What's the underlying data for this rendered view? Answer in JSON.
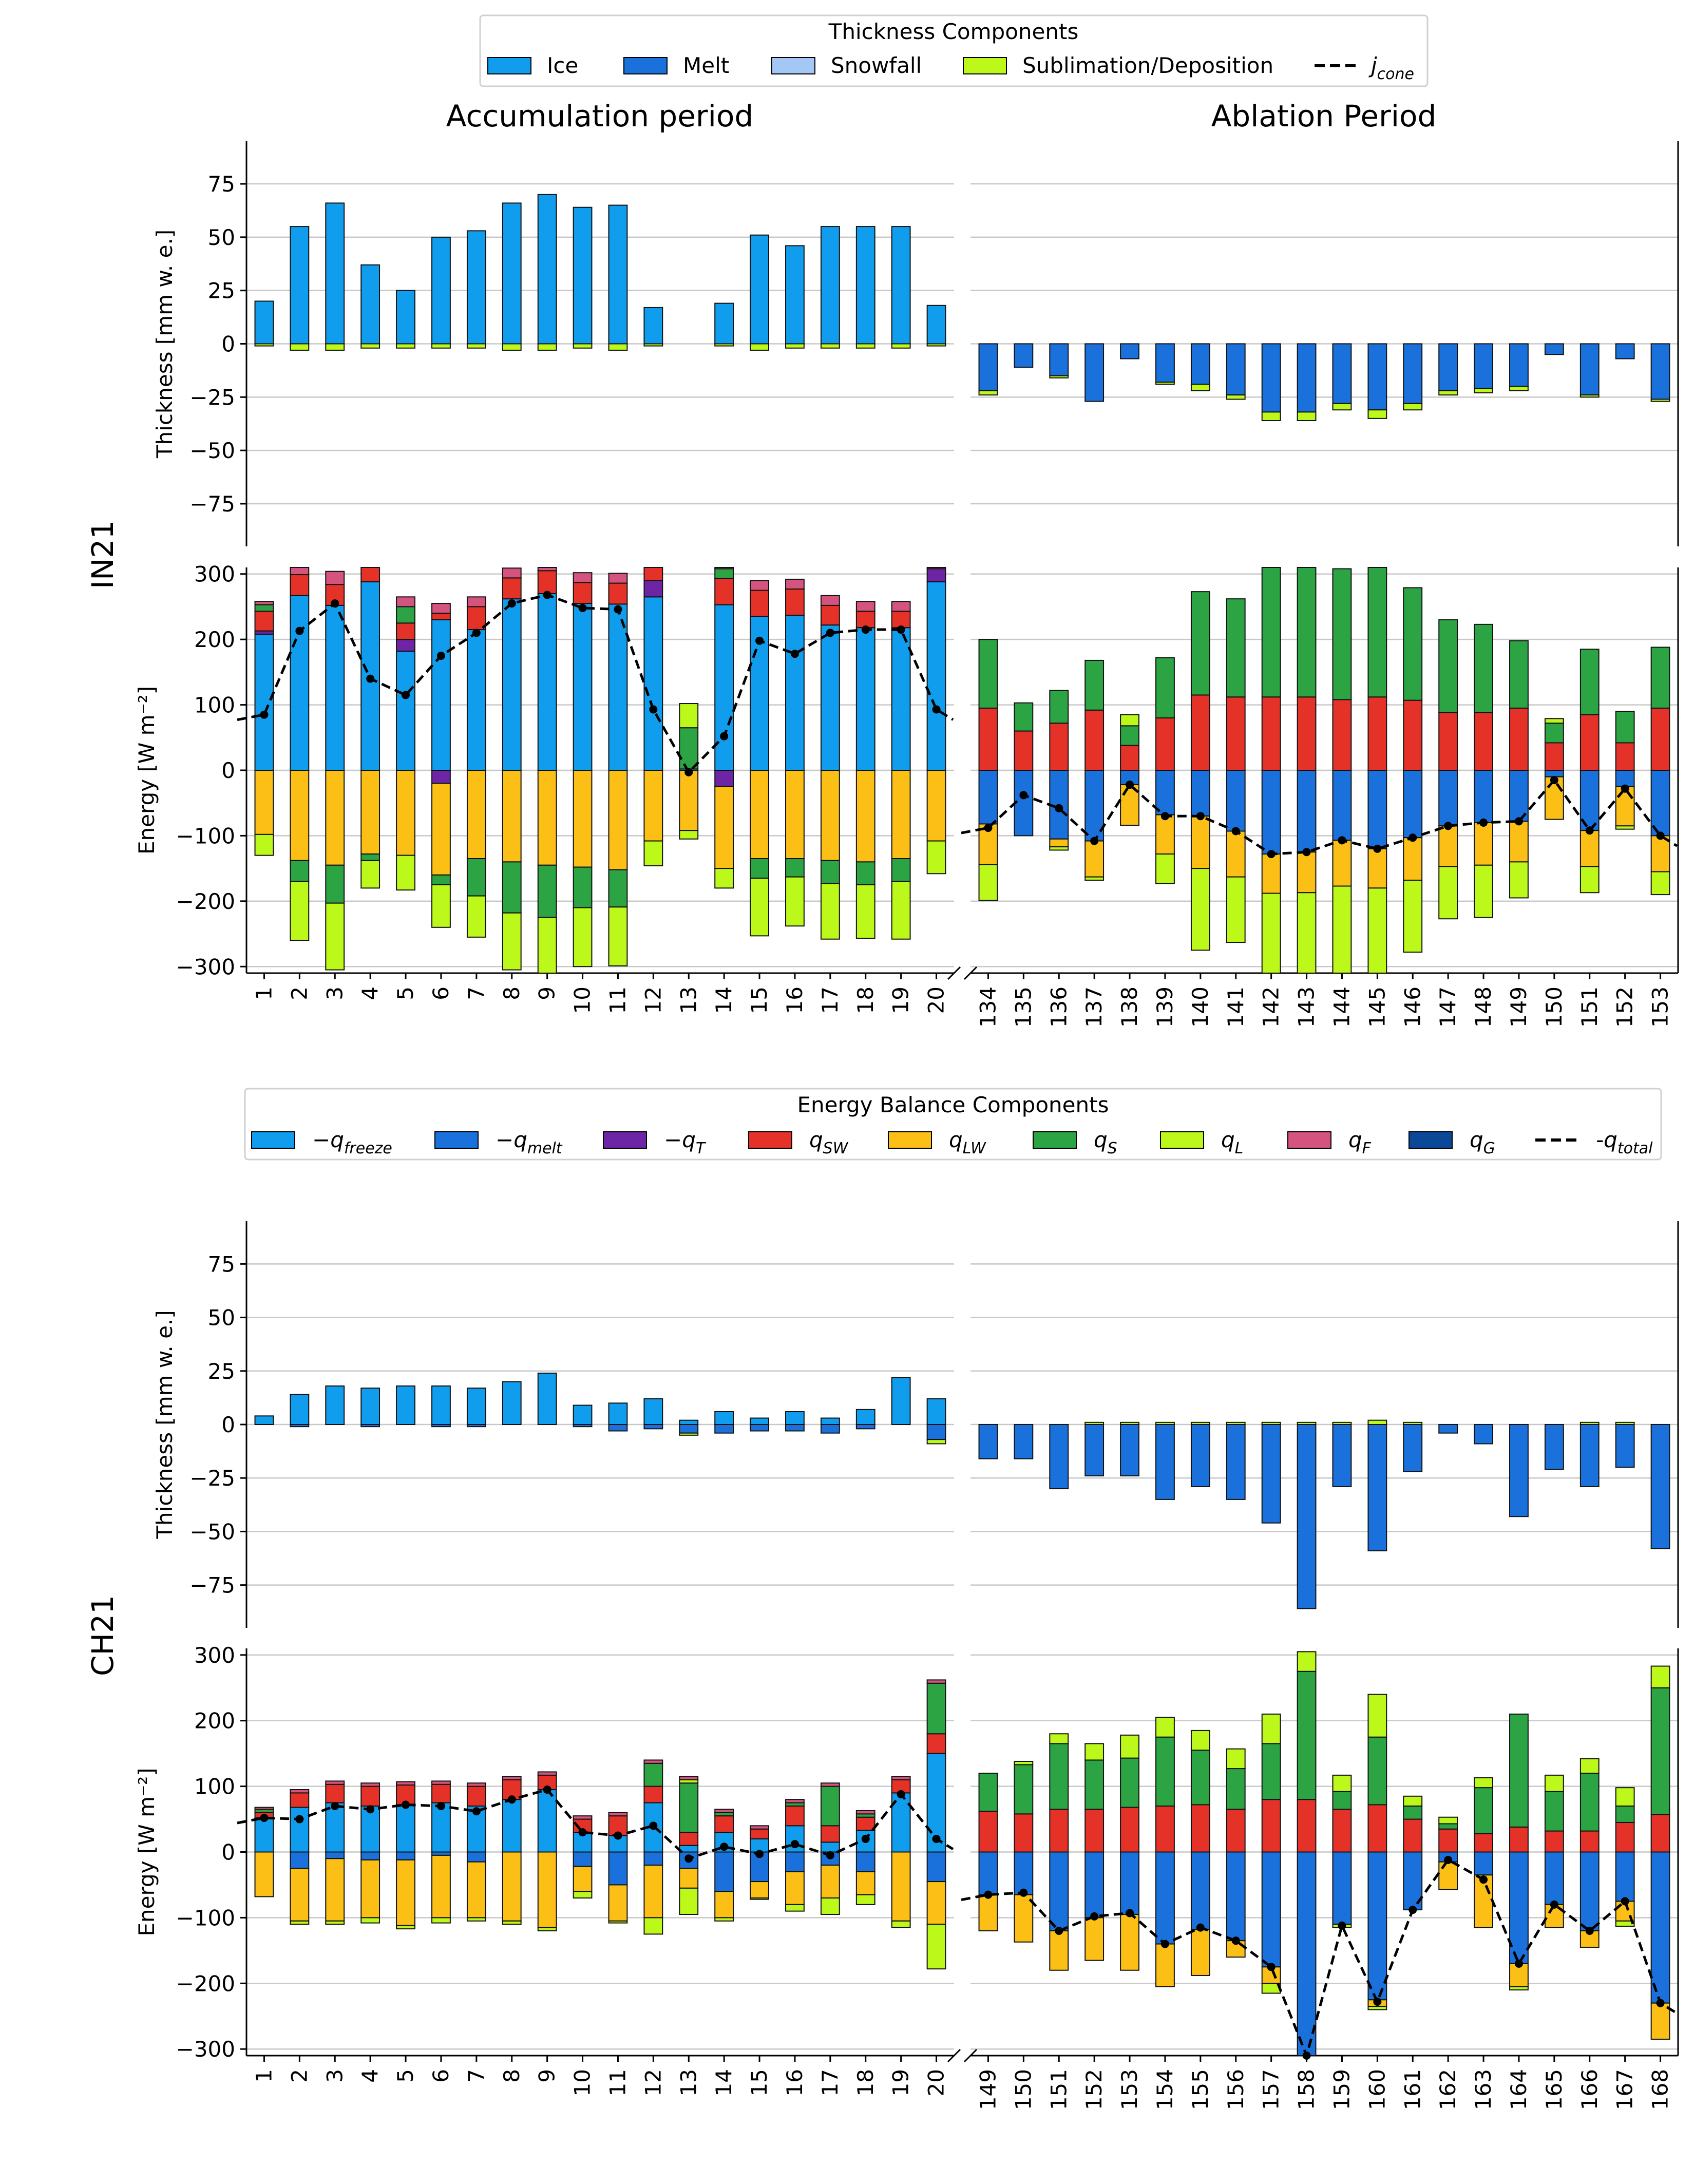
{
  "legend_top": {
    "title": "Thickness Components",
    "items": [
      {
        "label": "Ice",
        "color": "#119ded"
      },
      {
        "label": "Melt",
        "color": "#1a71dc"
      },
      {
        "label": "Snowfall",
        "color": "#a3c8f5"
      },
      {
        "label": "Sublimation/Deposition",
        "color": "#bcf81a"
      }
    ],
    "line_label": "j",
    "line_label_sub": "cone"
  },
  "legend_mid": {
    "title": "Energy Balance Components",
    "items": [
      {
        "pre": "−q",
        "sub": "freeze",
        "color": "#119ded"
      },
      {
        "pre": "−q",
        "sub": "melt",
        "color": "#1a71dc"
      },
      {
        "pre": "−q",
        "sub": "T",
        "color": "#6d25a5"
      },
      {
        "pre": "q",
        "sub": "SW",
        "color": "#e53228"
      },
      {
        "pre": "q",
        "sub": "LW",
        "color": "#fbbf16"
      },
      {
        "pre": "q",
        "sub": "S",
        "color": "#2ca443"
      },
      {
        "pre": "q",
        "sub": "L",
        "color": "#bcf81a"
      },
      {
        "pre": "q",
        "sub": "F",
        "color": "#d5547f"
      },
      {
        "pre": "q",
        "sub": "G",
        "color": "#0c4898"
      }
    ],
    "line_label": "-q",
    "line_label_sub": "total"
  },
  "period_titles": {
    "left": "Accumulation period",
    "right": "Ablation Period"
  },
  "chart_data": [
    {
      "type": "bar",
      "site": "IN21",
      "thickness_ylabel": "Thickness [mm w. e.]",
      "energy_ylabel": "Energy [W m⁻²]",
      "thickness_ylim": [
        -95,
        95
      ],
      "thickness_ticks": [
        75,
        50,
        25,
        0,
        -25,
        -50,
        -75
      ],
      "energy_ylim": [
        -310,
        310
      ],
      "energy_ticks": [
        300,
        200,
        100,
        0,
        -100,
        -200,
        -300
      ],
      "left_days": [
        "1",
        "2",
        "3",
        "4",
        "5",
        "6",
        "7",
        "8",
        "9",
        "10",
        "11",
        "12",
        "13",
        "14",
        "15",
        "16",
        "17",
        "18",
        "19",
        "20"
      ],
      "right_days": [
        "134",
        "135",
        "136",
        "137",
        "138",
        "139",
        "140",
        "141",
        "142",
        "143",
        "144",
        "145",
        "146",
        "147",
        "148",
        "149",
        "150",
        "151",
        "152",
        "153"
      ],
      "thickness_left": {
        "ice": [
          20,
          55,
          66,
          37,
          25,
          50,
          53,
          66,
          70,
          64,
          65,
          17,
          0,
          19,
          51,
          46,
          55,
          55,
          55,
          18
        ],
        "sublimation": [
          -1,
          -3,
          -3,
          -2,
          -2,
          -2,
          -2,
          -3,
          -3,
          -2,
          -3,
          -1,
          0,
          -1,
          -3,
          -2,
          -2,
          -2,
          -2,
          -1
        ]
      },
      "thickness_right": {
        "melt": [
          -22,
          -11,
          -15,
          -27,
          -7,
          -18,
          -19,
          -24,
          -32,
          -32,
          -28,
          -31,
          -28,
          -22,
          -21,
          -20,
          -5,
          -24,
          -7,
          -26
        ],
        "sublimation": [
          -2,
          0,
          -1,
          0,
          0,
          -1,
          -3,
          -2,
          -4,
          -4,
          -3,
          -4,
          -3,
          -2,
          -2,
          -2,
          0,
          -1,
          0,
          -1
        ]
      },
      "energy_left": {
        "freeze": [
          208,
          267,
          252,
          288,
          182,
          230,
          215,
          262,
          270,
          255,
          254,
          265,
          2,
          253,
          235,
          237,
          222,
          218,
          218,
          288
        ],
        "tcool": [
          5,
          0,
          0,
          0,
          18,
          0,
          0,
          0,
          0,
          0,
          0,
          25,
          0,
          0,
          0,
          0,
          0,
          0,
          0,
          20
        ],
        "sw": [
          30,
          32,
          32,
          32,
          25,
          10,
          35,
          32,
          35,
          32,
          32,
          35,
          0,
          40,
          40,
          40,
          30,
          25,
          25,
          15
        ],
        "lw": [
          -98,
          -138,
          -145,
          -128,
          -130,
          -140,
          -135,
          -140,
          -145,
          -148,
          -152,
          -108,
          -92,
          -125,
          -135,
          -135,
          -138,
          -140,
          -135,
          -108
        ],
        "s": [
          10,
          0,
          0,
          0,
          25,
          0,
          0,
          0,
          0,
          0,
          0,
          0,
          63,
          15,
          0,
          0,
          0,
          0,
          0,
          0
        ],
        "l": [
          0,
          0,
          0,
          0,
          0,
          0,
          0,
          0,
          0,
          0,
          0,
          0,
          37,
          0,
          0,
          0,
          0,
          0,
          0,
          0
        ],
        "f": [
          5,
          15,
          20,
          15,
          15,
          15,
          15,
          15,
          15,
          15,
          15,
          10,
          0,
          15,
          15,
          15,
          15,
          15,
          15,
          5
        ],
        "s_neg": [
          0,
          -32,
          -58,
          -10,
          0,
          -15,
          -57,
          -78,
          -80,
          -62,
          -57,
          0,
          0,
          0,
          -30,
          -28,
          -35,
          -35,
          -35,
          0
        ],
        "l_neg": [
          -32,
          -90,
          -102,
          -42,
          -53,
          -65,
          -63,
          -87,
          -85,
          -90,
          -90,
          -38,
          -13,
          -30,
          -88,
          -75,
          -85,
          -82,
          -88,
          -50
        ],
        "t_neg": [
          0,
          0,
          0,
          0,
          0,
          -20,
          0,
          0,
          0,
          0,
          0,
          0,
          0,
          -25,
          0,
          0,
          0,
          0,
          0,
          0
        ],
        "total": [
          85,
          213,
          255,
          140,
          115,
          175,
          210,
          255,
          268,
          248,
          246,
          93,
          -3,
          52,
          198,
          178,
          210,
          215,
          215,
          93
        ]
      },
      "energy_right": {
        "melt": [
          -82,
          -100,
          -105,
          -108,
          -22,
          -68,
          -70,
          -93,
          -128,
          -125,
          -107,
          -120,
          -103,
          -85,
          -80,
          -78,
          -10,
          -92,
          -25,
          -100
        ],
        "sw": [
          95,
          60,
          72,
          92,
          38,
          80,
          115,
          112,
          112,
          112,
          108,
          112,
          107,
          88,
          88,
          95,
          42,
          85,
          42,
          95
        ],
        "s": [
          105,
          43,
          50,
          76,
          30,
          92,
          158,
          150,
          200,
          200,
          200,
          200,
          172,
          142,
          135,
          103,
          30,
          100,
          48,
          93
        ],
        "l": [
          0,
          0,
          0,
          0,
          17,
          0,
          0,
          0,
          0,
          0,
          0,
          0,
          0,
          0,
          0,
          0,
          7,
          0,
          0,
          0
        ],
        "lw": [
          -62,
          0,
          -12,
          -55,
          -62,
          -60,
          -80,
          -70,
          -60,
          -62,
          -70,
          -60,
          -65,
          -62,
          -65,
          -62,
          -65,
          -55,
          -60,
          -55
        ],
        "l_neg": [
          -55,
          0,
          -5,
          -5,
          0,
          -45,
          -125,
          -100,
          -160,
          -160,
          -160,
          -160,
          -110,
          -80,
          -80,
          -55,
          0,
          -40,
          -5,
          -35
        ],
        "total": [
          -88,
          -38,
          -58,
          -108,
          -22,
          -70,
          -70,
          -93,
          -128,
          -125,
          -107,
          -120,
          -103,
          -85,
          -80,
          -78,
          -15,
          -92,
          -28,
          -100
        ]
      }
    },
    {
      "type": "bar",
      "site": "CH21",
      "thickness_ylabel": "Thickness [mm w. e.]",
      "energy_ylabel": "Energy [W m⁻²]",
      "thickness_ylim": [
        -95,
        95
      ],
      "thickness_ticks": [
        75,
        50,
        25,
        0,
        -25,
        -50,
        -75
      ],
      "energy_ylim": [
        -310,
        310
      ],
      "energy_ticks": [
        300,
        200,
        100,
        0,
        -100,
        -200,
        -300
      ],
      "left_days": [
        "1",
        "2",
        "3",
        "4",
        "5",
        "6",
        "7",
        "8",
        "9",
        "10",
        "11",
        "12",
        "13",
        "14",
        "15",
        "16",
        "17",
        "18",
        "19",
        "20"
      ],
      "right_days": [
        "149",
        "150",
        "151",
        "152",
        "153",
        "154",
        "155",
        "156",
        "157",
        "158",
        "159",
        "160",
        "161",
        "162",
        "163",
        "164",
        "165",
        "166",
        "167",
        "168"
      ],
      "thickness_left": {
        "ice": [
          4,
          14,
          18,
          17,
          18,
          18,
          17,
          20,
          24,
          9,
          10,
          12,
          2,
          6,
          3,
          6,
          3,
          7,
          22,
          12
        ],
        "melt": [
          0,
          -1,
          0,
          -1,
          0,
          -1,
          -1,
          0,
          0,
          -1,
          -3,
          -2,
          -4,
          -4,
          -3,
          -3,
          -4,
          -2,
          0,
          -7
        ],
        "sublimation": [
          0,
          0,
          0,
          0,
          0,
          0,
          0,
          0,
          0,
          0,
          0,
          0,
          -1,
          0,
          0,
          0,
          0,
          0,
          0,
          -2
        ]
      },
      "thickness_right": {
        "melt": [
          -16,
          -16,
          -30,
          -24,
          -24,
          -35,
          -29,
          -35,
          -46,
          -86,
          -29,
          -59,
          -22,
          -4,
          -9,
          -43,
          -21,
          -29,
          -20,
          -58
        ],
        "sublimation": [
          0,
          0,
          0,
          1,
          1,
          1,
          1,
          1,
          1,
          1,
          1,
          2,
          1,
          0,
          0,
          0,
          0,
          1,
          1,
          0
        ]
      },
      "energy_left": {
        "freeze": [
          52,
          68,
          75,
          70,
          72,
          75,
          70,
          80,
          95,
          30,
          25,
          75,
          10,
          30,
          20,
          40,
          15,
          33,
          90,
          150
        ],
        "sw": [
          8,
          22,
          28,
          30,
          30,
          28,
          30,
          30,
          22,
          20,
          30,
          25,
          20,
          25,
          15,
          30,
          25,
          20,
          20,
          30
        ],
        "s": [
          5,
          0,
          0,
          0,
          0,
          0,
          0,
          0,
          0,
          0,
          0,
          35,
          75,
          5,
          0,
          5,
          60,
          5,
          0,
          77
        ],
        "l": [
          0,
          0,
          0,
          0,
          0,
          0,
          0,
          0,
          0,
          0,
          0,
          0,
          5,
          0,
          0,
          0,
          0,
          0,
          0,
          0
        ],
        "f": [
          3,
          5,
          5,
          5,
          5,
          5,
          5,
          5,
          5,
          5,
          5,
          5,
          5,
          5,
          5,
          5,
          5,
          5,
          5,
          5
        ],
        "melt": [
          0,
          -25,
          -10,
          -12,
          -12,
          -5,
          -15,
          0,
          0,
          -22,
          -50,
          -20,
          -25,
          -60,
          -45,
          -30,
          -20,
          -30,
          0,
          -45
        ],
        "lw": [
          -68,
          -80,
          -95,
          -88,
          -100,
          -95,
          -85,
          -105,
          -115,
          -38,
          -55,
          -80,
          -30,
          -40,
          -25,
          -50,
          -50,
          -35,
          -105,
          -65
        ],
        "l_neg": [
          0,
          -5,
          -5,
          -8,
          -5,
          -8,
          -5,
          -5,
          -5,
          -10,
          -3,
          -25,
          -40,
          -5,
          -2,
          -10,
          -25,
          -15,
          -10,
          -68
        ],
        "total": [
          52,
          50,
          70,
          65,
          72,
          70,
          62,
          80,
          95,
          30,
          25,
          40,
          -10,
          8,
          -3,
          12,
          -5,
          20,
          88,
          20
        ]
      },
      "energy_right": {
        "melt": [
          -65,
          -65,
          -120,
          -100,
          -95,
          -140,
          -118,
          -135,
          -175,
          -310,
          -110,
          -225,
          -88,
          -15,
          -35,
          -170,
          -80,
          -120,
          -75,
          -230
        ],
        "sw": [
          62,
          58,
          65,
          65,
          68,
          70,
          72,
          65,
          80,
          80,
          65,
          72,
          50,
          35,
          28,
          38,
          32,
          32,
          45,
          57
        ],
        "s": [
          58,
          75,
          100,
          75,
          75,
          105,
          83,
          62,
          85,
          195,
          27,
          103,
          20,
          8,
          70,
          172,
          60,
          88,
          25,
          193
        ],
        "l": [
          0,
          5,
          15,
          25,
          35,
          30,
          30,
          30,
          45,
          30,
          25,
          65,
          15,
          10,
          15,
          0,
          25,
          22,
          28,
          33
        ],
        "lw": [
          -55,
          -72,
          -60,
          -65,
          -85,
          -65,
          -70,
          -25,
          -25,
          0,
          0,
          -10,
          0,
          -42,
          -80,
          -35,
          -35,
          -25,
          -30,
          -55
        ],
        "l_neg": [
          0,
          0,
          0,
          0,
          0,
          0,
          0,
          0,
          -15,
          0,
          -5,
          -5,
          0,
          0,
          0,
          -5,
          0,
          0,
          -8,
          0
        ],
        "total": [
          -65,
          -62,
          -120,
          -98,
          -93,
          -140,
          -115,
          -135,
          -175,
          -310,
          -112,
          -228,
          -88,
          -12,
          -42,
          -170,
          -80,
          -120,
          -75,
          -230
        ]
      }
    }
  ]
}
